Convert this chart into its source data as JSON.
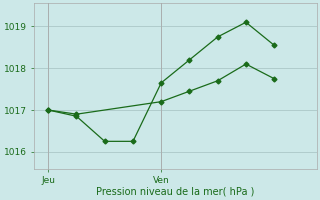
{
  "xlabel": "Pression niveau de la mer( hPa )",
  "background_color": "#cce8e8",
  "grid_color": "#b0cccc",
  "line_color": "#1a6b1a",
  "spine_color": "#aaaaaa",
  "ylim": [
    1015.6,
    1019.55
  ],
  "yticks": [
    1016,
    1017,
    1018,
    1019
  ],
  "xlim": [
    0,
    10
  ],
  "xtick_positions": [
    0.5,
    4.5
  ],
  "xtick_labels": [
    "Jeu",
    "Ven"
  ],
  "vline_positions": [
    0.5,
    4.5
  ],
  "line1_x": [
    0.5,
    1.5,
    2.5,
    3.5,
    4.5,
    5.5,
    6.5,
    7.5,
    8.5
  ],
  "line1_y": [
    1017.0,
    1016.85,
    1016.25,
    1016.25,
    1017.65,
    1018.2,
    1018.75,
    1019.1,
    1018.55
  ],
  "line2_x": [
    0.5,
    1.5,
    4.5,
    5.5,
    6.5,
    7.5,
    8.5
  ],
  "line2_y": [
    1017.0,
    1016.9,
    1017.2,
    1017.45,
    1017.7,
    1018.1,
    1017.75
  ],
  "marker": "D",
  "marker_size": 2.5,
  "line_width": 0.9,
  "tick_labelsize": 6.5,
  "xlabel_fontsize": 7
}
